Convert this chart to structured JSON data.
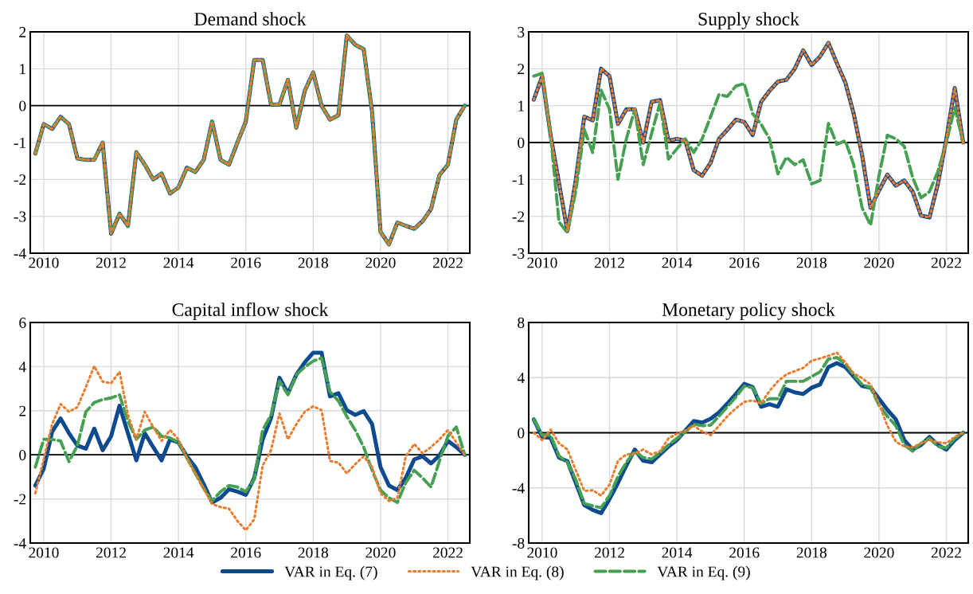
{
  "chart_data": [
    {
      "type": "line",
      "title": "Demand shock",
      "legend": "bottom",
      "grid": true,
      "x": [
        2009.75,
        2010,
        2010.25,
        2010.5,
        2010.75,
        2011,
        2011.25,
        2011.5,
        2011.75,
        2012,
        2012.25,
        2012.5,
        2012.75,
        2013,
        2013.25,
        2013.5,
        2013.75,
        2014,
        2014.25,
        2014.5,
        2014.75,
        2015,
        2015.25,
        2015.5,
        2015.75,
        2016,
        2016.25,
        2016.5,
        2016.75,
        2017,
        2017.25,
        2017.5,
        2017.75,
        2018,
        2018.25,
        2018.5,
        2018.75,
        2019,
        2019.25,
        2019.5,
        2019.75,
        2020,
        2020.25,
        2020.5,
        2020.75,
        2021,
        2021.25,
        2021.5,
        2021.75,
        2022,
        2022.25,
        2022.5
      ],
      "xlim": [
        2009.6,
        2022.65
      ],
      "xticks": [
        2010,
        2012,
        2014,
        2016,
        2018,
        2020,
        2022
      ],
      "ylim": [
        -4,
        2
      ],
      "yticks": [
        {
          "value": -4,
          "label": "-4"
        },
        {
          "value": -3,
          "label": "-3"
        },
        {
          "value": -2,
          "label": "-2"
        },
        {
          "value": -1,
          "label": "-1"
        },
        0,
        1,
        2
      ],
      "ref_lines": [
        {
          "axis": "y",
          "value": 0,
          "color": "#000000"
        }
      ],
      "series": [
        {
          "name": "VAR in Eq. (7)",
          "color": "#0e4a8f",
          "line_style": "solid",
          "values": [
            -1.3,
            -0.5,
            -0.63,
            -0.3,
            -0.5,
            -1.43,
            -1.47,
            -1.47,
            -1.0,
            -3.47,
            -2.93,
            -3.26,
            -1.26,
            -1.6,
            -2.0,
            -1.84,
            -2.38,
            -2.22,
            -1.68,
            -1.8,
            -1.47,
            -0.43,
            -1.47,
            -1.6,
            -1.0,
            -0.43,
            1.24,
            1.24,
            0.03,
            0.03,
            0.7,
            -0.6,
            0.4,
            0.9,
            0,
            -0.38,
            -0.26,
            1.9,
            1.65,
            1.53,
            -0.17,
            -3.42,
            -3.76,
            -3.17,
            -3.26,
            -3.34,
            -3.13,
            -2.8,
            -1.88,
            -1.6,
            -0.38,
            0
          ]
        },
        {
          "name": "VAR in Eq. (8)",
          "color": "#e87d2f",
          "line_style": "dotted",
          "values": [
            -1.3,
            -0.5,
            -0.63,
            -0.3,
            -0.5,
            -1.43,
            -1.47,
            -1.47,
            -1.0,
            -3.47,
            -2.93,
            -3.26,
            -1.26,
            -1.6,
            -2.0,
            -1.84,
            -2.38,
            -2.22,
            -1.68,
            -1.8,
            -1.47,
            -0.43,
            -1.47,
            -1.6,
            -1.0,
            -0.43,
            1.24,
            1.24,
            0.03,
            0.03,
            0.7,
            -0.6,
            0.4,
            0.9,
            0,
            -0.38,
            -0.26,
            1.9,
            1.65,
            1.53,
            -0.17,
            -3.42,
            -3.76,
            -3.17,
            -3.26,
            -3.34,
            -3.13,
            -2.8,
            -1.88,
            -1.6,
            -0.38,
            0
          ]
        },
        {
          "name": "VAR in Eq. (9)",
          "color": "#46a052",
          "line_style": "dashed",
          "values": [
            -1.3,
            -0.5,
            -0.63,
            -0.3,
            -0.5,
            -1.43,
            -1.47,
            -1.47,
            -1.0,
            -3.47,
            -2.93,
            -3.26,
            -1.26,
            -1.6,
            -2.0,
            -1.84,
            -2.38,
            -2.22,
            -1.68,
            -1.8,
            -1.47,
            -0.43,
            -1.47,
            -1.6,
            -1.0,
            -0.43,
            1.24,
            1.24,
            0.03,
            0.03,
            0.7,
            -0.6,
            0.4,
            0.9,
            0,
            -0.38,
            -0.26,
            1.9,
            1.65,
            1.53,
            -0.17,
            -3.42,
            -3.76,
            -3.17,
            -3.26,
            -3.34,
            -3.13,
            -2.8,
            -1.88,
            -1.6,
            -0.38,
            0
          ]
        }
      ]
    },
    {
      "type": "line",
      "title": "Supply shock",
      "grid": true,
      "x": [
        2009.75,
        2010,
        2010.25,
        2010.5,
        2010.75,
        2011,
        2011.25,
        2011.5,
        2011.75,
        2012,
        2012.25,
        2012.5,
        2012.75,
        2013,
        2013.25,
        2013.5,
        2013.75,
        2014,
        2014.25,
        2014.5,
        2014.75,
        2015,
        2015.25,
        2015.5,
        2015.75,
        2016,
        2016.25,
        2016.5,
        2016.75,
        2017,
        2017.25,
        2017.5,
        2017.75,
        2018,
        2018.25,
        2018.5,
        2018.75,
        2019,
        2019.25,
        2019.5,
        2019.75,
        2020,
        2020.25,
        2020.5,
        2020.75,
        2021,
        2021.25,
        2021.5,
        2021.75,
        2022,
        2022.25,
        2022.5
      ],
      "xlim": [
        2009.6,
        2022.65
      ],
      "xticks": [
        2010,
        2012,
        2014,
        2016,
        2018,
        2020,
        2022
      ],
      "ylim": [
        -3,
        3
      ],
      "yticks": [
        {
          "value": -3,
          "label": "-3"
        },
        {
          "value": -2,
          "label": "-2"
        },
        {
          "value": -1,
          "label": "-1"
        },
        0,
        1,
        2,
        3
      ],
      "ref_lines": [
        {
          "axis": "y",
          "value": 0,
          "color": "#000000"
        }
      ],
      "series": [
        {
          "name": "VAR in Eq. (7)",
          "color": "#0e4a8f",
          "line_style": "solid",
          "values": [
            1.16,
            1.8,
            0.2,
            -1.1,
            -2.4,
            -1.0,
            0.7,
            0.6,
            2.0,
            1.8,
            0.5,
            0.9,
            0.9,
            0.0,
            1.1,
            1.15,
            0.05,
            0.1,
            0.05,
            -0.75,
            -0.9,
            -0.55,
            0.1,
            0.35,
            0.62,
            0.56,
            0.2,
            1.1,
            1.4,
            1.65,
            1.7,
            2.0,
            2.5,
            2.1,
            2.33,
            2.7,
            2.15,
            1.63,
            0.78,
            -0.35,
            -1.77,
            -1.3,
            -0.87,
            -1.17,
            -1.03,
            -1.33,
            -1.98,
            -2.03,
            -1.12,
            0.1,
            1.48,
            0.0
          ]
        },
        {
          "name": "VAR in Eq. (8)",
          "color": "#e87d2f",
          "line_style": "dotted",
          "values": [
            1.16,
            1.8,
            0.2,
            -1.1,
            -2.4,
            -1.0,
            0.7,
            0.6,
            2.0,
            1.8,
            0.5,
            0.9,
            0.9,
            0.0,
            1.1,
            1.15,
            0.05,
            0.1,
            0.05,
            -0.75,
            -0.9,
            -0.55,
            0.1,
            0.35,
            0.62,
            0.56,
            0.2,
            1.1,
            1.4,
            1.65,
            1.7,
            2.0,
            2.5,
            2.1,
            2.33,
            2.7,
            2.15,
            1.63,
            0.78,
            -0.35,
            -1.77,
            -1.3,
            -0.87,
            -1.17,
            -1.03,
            -1.33,
            -1.98,
            -2.03,
            -1.12,
            0.1,
            1.48,
            0.0
          ]
        },
        {
          "name": "VAR in Eq. (9)",
          "color": "#46a052",
          "line_style": "dashed",
          "values": [
            1.8,
            1.88,
            0.2,
            -2.15,
            -2.45,
            -1.3,
            0.35,
            -0.27,
            1.42,
            0.9,
            -1.0,
            0.1,
            0.9,
            -0.6,
            0.25,
            1.08,
            -0.45,
            -0.17,
            0.1,
            -0.27,
            0.1,
            0.7,
            1.3,
            1.25,
            1.53,
            1.6,
            0.78,
            0.5,
            0.1,
            -0.85,
            -0.4,
            -0.6,
            -0.47,
            -1.12,
            -1.03,
            0.52,
            -0.05,
            0.05,
            -0.6,
            -1.77,
            -2.24,
            -0.9,
            0.2,
            0.1,
            -0.1,
            -0.95,
            -1.5,
            -1.33,
            -0.78,
            0.0,
            0.95,
            0.0
          ]
        }
      ]
    },
    {
      "type": "line",
      "title": "Capital inflow shock",
      "grid": true,
      "x": [
        2009.75,
        2010,
        2010.25,
        2010.5,
        2010.75,
        2011,
        2011.25,
        2011.5,
        2011.75,
        2012,
        2012.25,
        2012.5,
        2012.75,
        2013,
        2013.25,
        2013.5,
        2013.75,
        2014,
        2014.25,
        2014.5,
        2014.75,
        2015,
        2015.25,
        2015.5,
        2015.75,
        2016,
        2016.25,
        2016.5,
        2016.75,
        2017,
        2017.25,
        2017.5,
        2017.75,
        2018,
        2018.25,
        2018.5,
        2018.75,
        2019,
        2019.25,
        2019.5,
        2019.75,
        2020,
        2020.25,
        2020.5,
        2020.75,
        2021,
        2021.25,
        2021.5,
        2021.75,
        2022,
        2022.25,
        2022.5
      ],
      "xlim": [
        2009.6,
        2022.65
      ],
      "xticks": [
        2010,
        2012,
        2014,
        2016,
        2018,
        2020,
        2022
      ],
      "ylim": [
        -4,
        6
      ],
      "yticks": [
        {
          "value": -4,
          "label": "-4"
        },
        {
          "value": -2,
          "label": "-2"
        },
        0,
        2,
        4,
        6
      ],
      "ref_lines": [
        {
          "axis": "y",
          "value": 0,
          "color": "#000000"
        }
      ],
      "series": [
        {
          "name": "VAR in Eq. (7)",
          "color": "#0e4a8f",
          "line_style": "solid",
          "values": [
            -1.4,
            -0.63,
            1.05,
            1.65,
            0.98,
            0.42,
            0.28,
            1.19,
            0.21,
            0.84,
            2.23,
            0.98,
            -0.25,
            0.98,
            0.35,
            -0.25,
            0.7,
            0.56,
            -0.07,
            -0.56,
            -1.33,
            -2.16,
            -1.95,
            -1.56,
            -1.67,
            -1.81,
            -1.05,
            0.7,
            1.67,
            3.49,
            2.79,
            3.63,
            4.19,
            4.63,
            4.63,
            2.65,
            2.79,
            2.02,
            1.81,
            1.98,
            1.39,
            -0.56,
            -1.39,
            -1.6,
            -1.05,
            -0.21,
            -0.07,
            -0.39,
            -0.03,
            0.63,
            0.35,
            0
          ]
        },
        {
          "name": "VAR in Eq. (8)",
          "color": "#e87d2f",
          "line_style": "dotted",
          "values": [
            -1.74,
            -0.21,
            1.39,
            2.3,
            1.95,
            2.16,
            3.07,
            4.02,
            3.32,
            3.24,
            3.77,
            1.81,
            0.7,
            1.95,
            1.26,
            0.63,
            1.12,
            0.7,
            -0.14,
            -0.84,
            -1.53,
            -2.23,
            -2.37,
            -2.44,
            -3.0,
            -3.42,
            -2.93,
            -0.49,
            0.21,
            1.88,
            0.7,
            1.39,
            1.95,
            2.2,
            2.02,
            -0.28,
            -0.35,
            -0.84,
            -0.42,
            -0.07,
            -0.56,
            -1.74,
            -2.09,
            -1.95,
            -0.07,
            0.49,
            0.07,
            0.35,
            0.7,
            1.12,
            0.56,
            0
          ]
        },
        {
          "name": "VAR in Eq. (9)",
          "color": "#46a052",
          "line_style": "dashed",
          "values": [
            -0.56,
            0.7,
            0.7,
            0.63,
            -0.31,
            0.42,
            1.95,
            2.37,
            2.51,
            2.58,
            2.72,
            1.53,
            0.7,
            1.12,
            1.26,
            0.84,
            0.77,
            0.56,
            -0.14,
            -0.84,
            -1.53,
            -2.09,
            -1.67,
            -1.39,
            -1.46,
            -1.67,
            -1.12,
            1.12,
            1.81,
            3.35,
            2.72,
            3.63,
            3.98,
            4.25,
            4.39,
            2.86,
            2.44,
            1.74,
            1.12,
            0.35,
            -0.7,
            -1.6,
            -1.95,
            -2.16,
            -1.26,
            -0.7,
            -1.05,
            -1.46,
            -0.28,
            0.84,
            1.26,
            0
          ]
        }
      ]
    },
    {
      "type": "line",
      "title": "Monetary policy shock",
      "grid": true,
      "x": [
        2009.75,
        2010,
        2010.25,
        2010.5,
        2010.75,
        2011,
        2011.25,
        2011.5,
        2011.75,
        2012,
        2012.25,
        2012.5,
        2012.75,
        2013,
        2013.25,
        2013.5,
        2013.75,
        2014,
        2014.25,
        2014.5,
        2014.75,
        2015,
        2015.25,
        2015.5,
        2015.75,
        2016,
        2016.25,
        2016.5,
        2016.75,
        2017,
        2017.25,
        2017.5,
        2017.75,
        2018,
        2018.25,
        2018.5,
        2018.75,
        2019,
        2019.25,
        2019.5,
        2019.75,
        2020,
        2020.25,
        2020.5,
        2020.75,
        2021,
        2021.25,
        2021.5,
        2021.75,
        2022,
        2022.25,
        2022.5
      ],
      "xlim": [
        2009.6,
        2022.65
      ],
      "xticks": [
        2010,
        2012,
        2014,
        2016,
        2018,
        2020,
        2022
      ],
      "ylim": [
        -8,
        8
      ],
      "yticks": [
        {
          "value": -8,
          "label": "-8"
        },
        {
          "value": -4,
          "label": "-4"
        },
        0,
        4,
        8
      ],
      "ref_lines": [
        {
          "axis": "y",
          "value": 0,
          "color": "#000000"
        }
      ],
      "series": [
        {
          "name": "VAR in Eq. (7)",
          "color": "#0e4a8f",
          "line_style": "solid",
          "values": [
            0.97,
            -0.3,
            -0.37,
            -1.8,
            -2.07,
            -3.64,
            -5.25,
            -5.6,
            -5.83,
            -4.8,
            -3.64,
            -2.37,
            -1.22,
            -2.03,
            -2.14,
            -1.57,
            -1.0,
            -0.53,
            0.16,
            0.85,
            0.74,
            1.01,
            1.47,
            2.12,
            2.81,
            3.55,
            3.32,
            1.89,
            2.07,
            1.89,
            3.16,
            2.93,
            2.81,
            3.27,
            3.5,
            4.77,
            5.05,
            4.77,
            4.08,
            3.39,
            3.27,
            2.47,
            1.66,
            0.97,
            -0.53,
            -1.22,
            -0.88,
            -0.3,
            -0.88,
            -1.22,
            -0.53,
            0
          ]
        },
        {
          "name": "VAR in Eq. (8)",
          "color": "#e87d2f",
          "line_style": "dotted",
          "values": [
            0,
            -0.53,
            0.23,
            -0.76,
            -1.22,
            -2.72,
            -4.22,
            -4.17,
            -4.56,
            -3.76,
            -2.03,
            -1.57,
            -1.52,
            -1.22,
            -1.57,
            -1.34,
            -0.41,
            -0.07,
            0.16,
            0.51,
            0.09,
            -0.18,
            0.51,
            1.2,
            1.77,
            2.24,
            2.35,
            2.12,
            3.04,
            3.73,
            4.24,
            4.47,
            4.7,
            5.23,
            5.39,
            5.58,
            5.81,
            5.12,
            4.31,
            3.96,
            3.5,
            2.12,
            0.51,
            -0.65,
            -0.99,
            -1.06,
            -0.76,
            -0.53,
            -0.69,
            -0.76,
            -0.3,
            0
          ]
        },
        {
          "name": "VAR in Eq. (9)",
          "color": "#46a052",
          "line_style": "dashed",
          "values": [
            0.97,
            -0.18,
            -0.18,
            -1.68,
            -2.14,
            -3.41,
            -5.14,
            -5.3,
            -5.44,
            -4.56,
            -3.18,
            -2.14,
            -1.34,
            -1.8,
            -1.91,
            -1.45,
            -0.88,
            -0.41,
            0.05,
            0.62,
            0.51,
            0.55,
            1.2,
            1.89,
            2.58,
            3.39,
            3.27,
            2.12,
            2.47,
            2.47,
            3.73,
            3.73,
            3.73,
            4.08,
            4.42,
            5.35,
            5.46,
            5.0,
            4.19,
            3.5,
            3.27,
            2.0,
            1.2,
            0.51,
            -0.88,
            -1.34,
            -0.76,
            -0.41,
            -0.99,
            -1.1,
            -0.41,
            0
          ]
        }
      ]
    }
  ]
}
